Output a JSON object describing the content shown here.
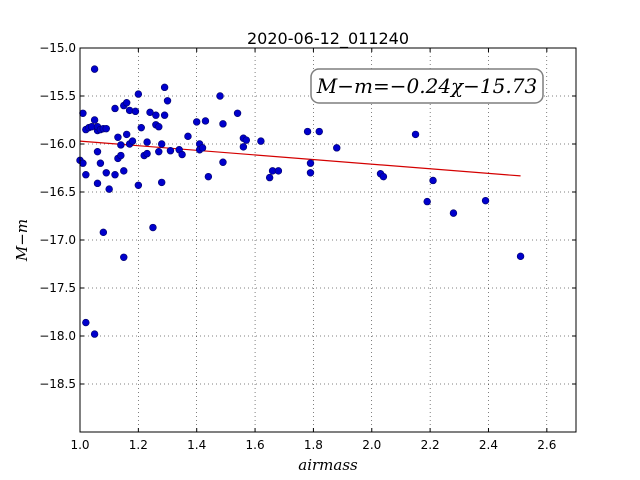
{
  "chart_data": {
    "type": "scatter",
    "title": "2020-06-12_011240",
    "xlabel": "airmass",
    "ylabel": "M−m",
    "xlim": [
      1.0,
      2.7
    ],
    "ylim": [
      -15.0,
      -19.0
    ],
    "y_inverted": true,
    "grid": true,
    "x_ticks": [
      "1.0",
      "1.2",
      "1.4",
      "1.6",
      "1.8",
      "2.0",
      "2.2",
      "2.4",
      "2.6"
    ],
    "x_tick_values": [
      1.0,
      1.2,
      1.4,
      1.6,
      1.8,
      2.0,
      2.2,
      2.4,
      2.6
    ],
    "y_ticks": [
      "−15.0",
      "−15.5",
      "−16.0",
      "−16.5",
      "−17.0",
      "−17.5",
      "−18.0",
      "−18.5"
    ],
    "y_tick_values": [
      -15.0,
      -15.5,
      -16.0,
      -16.5,
      -17.0,
      -17.5,
      -18.0,
      -18.5
    ],
    "annotation": "M−m=−0.24χ−15.73",
    "fit": {
      "slope": -0.24,
      "intercept": -15.73,
      "x_range": [
        1.0,
        2.51
      ],
      "color": "#d40000"
    },
    "marker_color": "#0000cc",
    "points": [
      [
        1.0,
        -16.17
      ],
      [
        1.01,
        -16.2
      ],
      [
        1.01,
        -15.68
      ],
      [
        1.02,
        -16.32
      ],
      [
        1.02,
        -15.85
      ],
      [
        1.03,
        -15.83
      ],
      [
        1.04,
        -15.82
      ],
      [
        1.05,
        -15.75
      ],
      [
        1.05,
        -15.22
      ],
      [
        1.06,
        -15.86
      ],
      [
        1.06,
        -15.82
      ],
      [
        1.06,
        -16.41
      ],
      [
        1.06,
        -16.08
      ],
      [
        1.07,
        -15.85
      ],
      [
        1.07,
        -16.2
      ],
      [
        1.08,
        -15.84
      ],
      [
        1.08,
        -16.92
      ],
      [
        1.09,
        -16.3
      ],
      [
        1.09,
        -15.84
      ],
      [
        1.1,
        -16.47
      ],
      [
        1.12,
        -15.63
      ],
      [
        1.12,
        -16.32
      ],
      [
        1.13,
        -15.93
      ],
      [
        1.13,
        -16.15
      ],
      [
        1.14,
        -16.01
      ],
      [
        1.14,
        -16.12
      ],
      [
        1.15,
        -16.28
      ],
      [
        1.15,
        -15.6
      ],
      [
        1.15,
        -17.18
      ],
      [
        1.16,
        -15.9
      ],
      [
        1.16,
        -15.57
      ],
      [
        1.17,
        -15.65
      ],
      [
        1.17,
        -16.0
      ],
      [
        1.18,
        -15.97
      ],
      [
        1.19,
        -15.66
      ],
      [
        1.2,
        -15.48
      ],
      [
        1.2,
        -16.43
      ],
      [
        1.21,
        -15.83
      ],
      [
        1.22,
        -16.12
      ],
      [
        1.23,
        -16.1
      ],
      [
        1.23,
        -15.98
      ],
      [
        1.24,
        -15.67
      ],
      [
        1.25,
        -16.87
      ],
      [
        1.26,
        -15.8
      ],
      [
        1.26,
        -15.7
      ],
      [
        1.27,
        -15.82
      ],
      [
        1.27,
        -16.08
      ],
      [
        1.28,
        -16.0
      ],
      [
        1.28,
        -16.4
      ],
      [
        1.29,
        -15.7
      ],
      [
        1.29,
        -15.41
      ],
      [
        1.3,
        -15.55
      ],
      [
        1.31,
        -16.07
      ],
      [
        1.34,
        -16.06
      ],
      [
        1.35,
        -16.11
      ],
      [
        1.37,
        -15.92
      ],
      [
        1.4,
        -15.77
      ],
      [
        1.41,
        -16.0
      ],
      [
        1.41,
        -16.06
      ],
      [
        1.42,
        -16.04
      ],
      [
        1.43,
        -15.76
      ],
      [
        1.44,
        -16.34
      ],
      [
        1.48,
        -15.5
      ],
      [
        1.49,
        -15.79
      ],
      [
        1.49,
        -16.19
      ],
      [
        1.54,
        -15.68
      ],
      [
        1.56,
        -15.94
      ],
      [
        1.56,
        -16.03
      ],
      [
        1.57,
        -15.96
      ],
      [
        1.62,
        -15.97
      ],
      [
        1.65,
        -16.35
      ],
      [
        1.66,
        -16.28
      ],
      [
        1.68,
        -16.28
      ],
      [
        1.78,
        -15.87
      ],
      [
        1.79,
        -16.3
      ],
      [
        1.79,
        -16.2
      ],
      [
        1.82,
        -15.87
      ],
      [
        1.88,
        -16.04
      ],
      [
        2.03,
        -16.31
      ],
      [
        2.04,
        -16.34
      ],
      [
        2.15,
        -15.9
      ],
      [
        2.19,
        -16.6
      ],
      [
        2.21,
        -16.38
      ],
      [
        2.28,
        -16.72
      ],
      [
        2.39,
        -16.59
      ],
      [
        2.51,
        -17.17
      ],
      [
        1.02,
        -17.86
      ],
      [
        1.05,
        -17.98
      ]
    ]
  }
}
